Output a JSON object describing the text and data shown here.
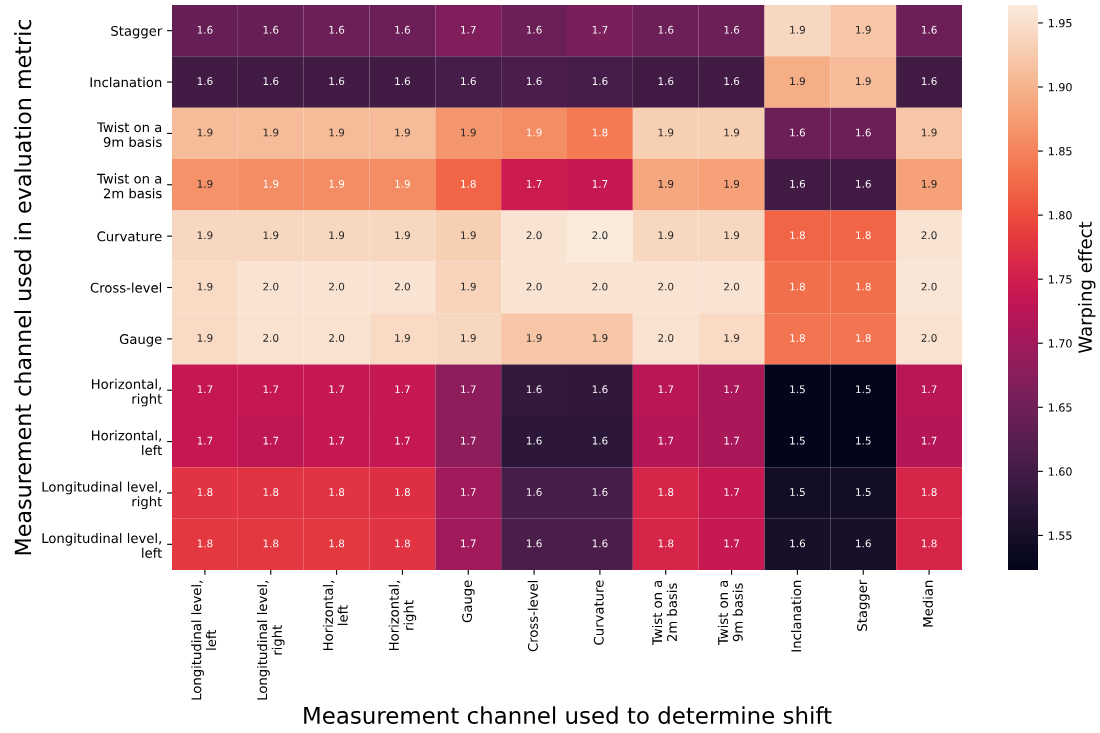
{
  "chart_data": {
    "type": "heatmap",
    "xlabel": "Measurement channel used to determine shift",
    "ylabel": "Measurement channel used in evaluation metric",
    "clabel": "Warping effect",
    "categories": [
      "Longitudinal level,\nleft",
      "Longitudinal level,\nright",
      "Horizontal,\nleft",
      "Horizontal,\nright",
      "Gauge",
      "Cross-level",
      "Curvature",
      "Twist on a\n2m basis",
      "Twist on a\n9m basis",
      "Inclanation",
      "Stagger",
      "Median"
    ],
    "y_categories": [
      "Stagger",
      "Inclanation",
      "Twist on a\n9m basis",
      "Twist on a\n2m basis",
      "Curvature",
      "Cross-level",
      "Gauge",
      "Horizontal,\nright",
      "Horizontal,\nleft",
      "Longitudinal level,\nright",
      "Longitudinal level,\nleft"
    ],
    "cells": [
      [
        1.64,
        1.64,
        1.645,
        1.645,
        1.665,
        1.645,
        1.66,
        1.645,
        1.645,
        1.94,
        1.92,
        1.645
      ],
      [
        1.6,
        1.6,
        1.6,
        1.6,
        1.605,
        1.61,
        1.605,
        1.6,
        1.6,
        1.895,
        1.91,
        1.6
      ],
      [
        1.91,
        1.91,
        1.91,
        1.91,
        1.87,
        1.86,
        1.84,
        1.93,
        1.93,
        1.645,
        1.645,
        1.92
      ],
      [
        1.865,
        1.86,
        1.86,
        1.86,
        1.82,
        1.745,
        1.74,
        1.885,
        1.88,
        1.6,
        1.6,
        1.88
      ],
      [
        1.94,
        1.94,
        1.94,
        1.94,
        1.93,
        1.955,
        1.964,
        1.94,
        1.94,
        1.82,
        1.82,
        1.955
      ],
      [
        1.945,
        1.955,
        1.955,
        1.955,
        1.935,
        1.955,
        1.955,
        1.955,
        1.955,
        1.83,
        1.83,
        1.958
      ],
      [
        1.945,
        1.952,
        1.952,
        1.945,
        1.94,
        1.92,
        1.92,
        1.952,
        1.945,
        1.835,
        1.835,
        1.952
      ],
      [
        1.735,
        1.735,
        1.735,
        1.74,
        1.68,
        1.585,
        1.58,
        1.725,
        1.71,
        1.523,
        1.523,
        1.725
      ],
      [
        1.735,
        1.73,
        1.74,
        1.735,
        1.68,
        1.575,
        1.575,
        1.72,
        1.71,
        1.523,
        1.523,
        1.72
      ],
      [
        1.775,
        1.775,
        1.775,
        1.77,
        1.7,
        1.605,
        1.605,
        1.76,
        1.74,
        1.545,
        1.545,
        1.76
      ],
      [
        1.78,
        1.78,
        1.78,
        1.775,
        1.7,
        1.61,
        1.61,
        1.76,
        1.74,
        1.552,
        1.552,
        1.76
      ]
    ],
    "cell_labels": [
      [
        "1.6",
        "1.6",
        "1.6",
        "1.6",
        "1.7",
        "1.6",
        "1.7",
        "1.6",
        "1.6",
        "1.9",
        "1.9",
        "1.6"
      ],
      [
        "1.6",
        "1.6",
        "1.6",
        "1.6",
        "1.6",
        "1.6",
        "1.6",
        "1.6",
        "1.6",
        "1.9",
        "1.9",
        "1.6"
      ],
      [
        "1.9",
        "1.9",
        "1.9",
        "1.9",
        "1.9",
        "1.9",
        "1.8",
        "1.9",
        "1.9",
        "1.6",
        "1.6",
        "1.9"
      ],
      [
        "1.9",
        "1.9",
        "1.9",
        "1.9",
        "1.8",
        "1.7",
        "1.7",
        "1.9",
        "1.9",
        "1.6",
        "1.6",
        "1.9"
      ],
      [
        "1.9",
        "1.9",
        "1.9",
        "1.9",
        "1.9",
        "2.0",
        "2.0",
        "1.9",
        "1.9",
        "1.8",
        "1.8",
        "2.0"
      ],
      [
        "1.9",
        "2.0",
        "2.0",
        "2.0",
        "1.9",
        "2.0",
        "2.0",
        "2.0",
        "2.0",
        "1.8",
        "1.8",
        "2.0"
      ],
      [
        "1.9",
        "2.0",
        "2.0",
        "1.9",
        "1.9",
        "1.9",
        "1.9",
        "2.0",
        "1.9",
        "1.8",
        "1.8",
        "2.0"
      ],
      [
        "1.7",
        "1.7",
        "1.7",
        "1.7",
        "1.7",
        "1.6",
        "1.6",
        "1.7",
        "1.7",
        "1.5",
        "1.5",
        "1.7"
      ],
      [
        "1.7",
        "1.7",
        "1.7",
        "1.7",
        "1.7",
        "1.6",
        "1.6",
        "1.7",
        "1.7",
        "1.5",
        "1.5",
        "1.7"
      ],
      [
        "1.8",
        "1.8",
        "1.8",
        "1.8",
        "1.7",
        "1.6",
        "1.6",
        "1.8",
        "1.7",
        "1.5",
        "1.5",
        "1.8"
      ],
      [
        "1.8",
        "1.8",
        "1.8",
        "1.8",
        "1.7",
        "1.6",
        "1.6",
        "1.8",
        "1.7",
        "1.6",
        "1.6",
        "1.8"
      ]
    ],
    "clim": [
      1.523,
      1.964
    ],
    "cticks": [
      1.55,
      {
        "value": 1.6,
        "label": "1.60"
      },
      1.65,
      {
        "value": 1.7,
        "label": "1.70"
      },
      1.75,
      {
        "value": 1.8,
        "label": "1.80"
      },
      1.85,
      {
        "value": 1.9,
        "label": "1.90"
      },
      1.95
    ]
  }
}
